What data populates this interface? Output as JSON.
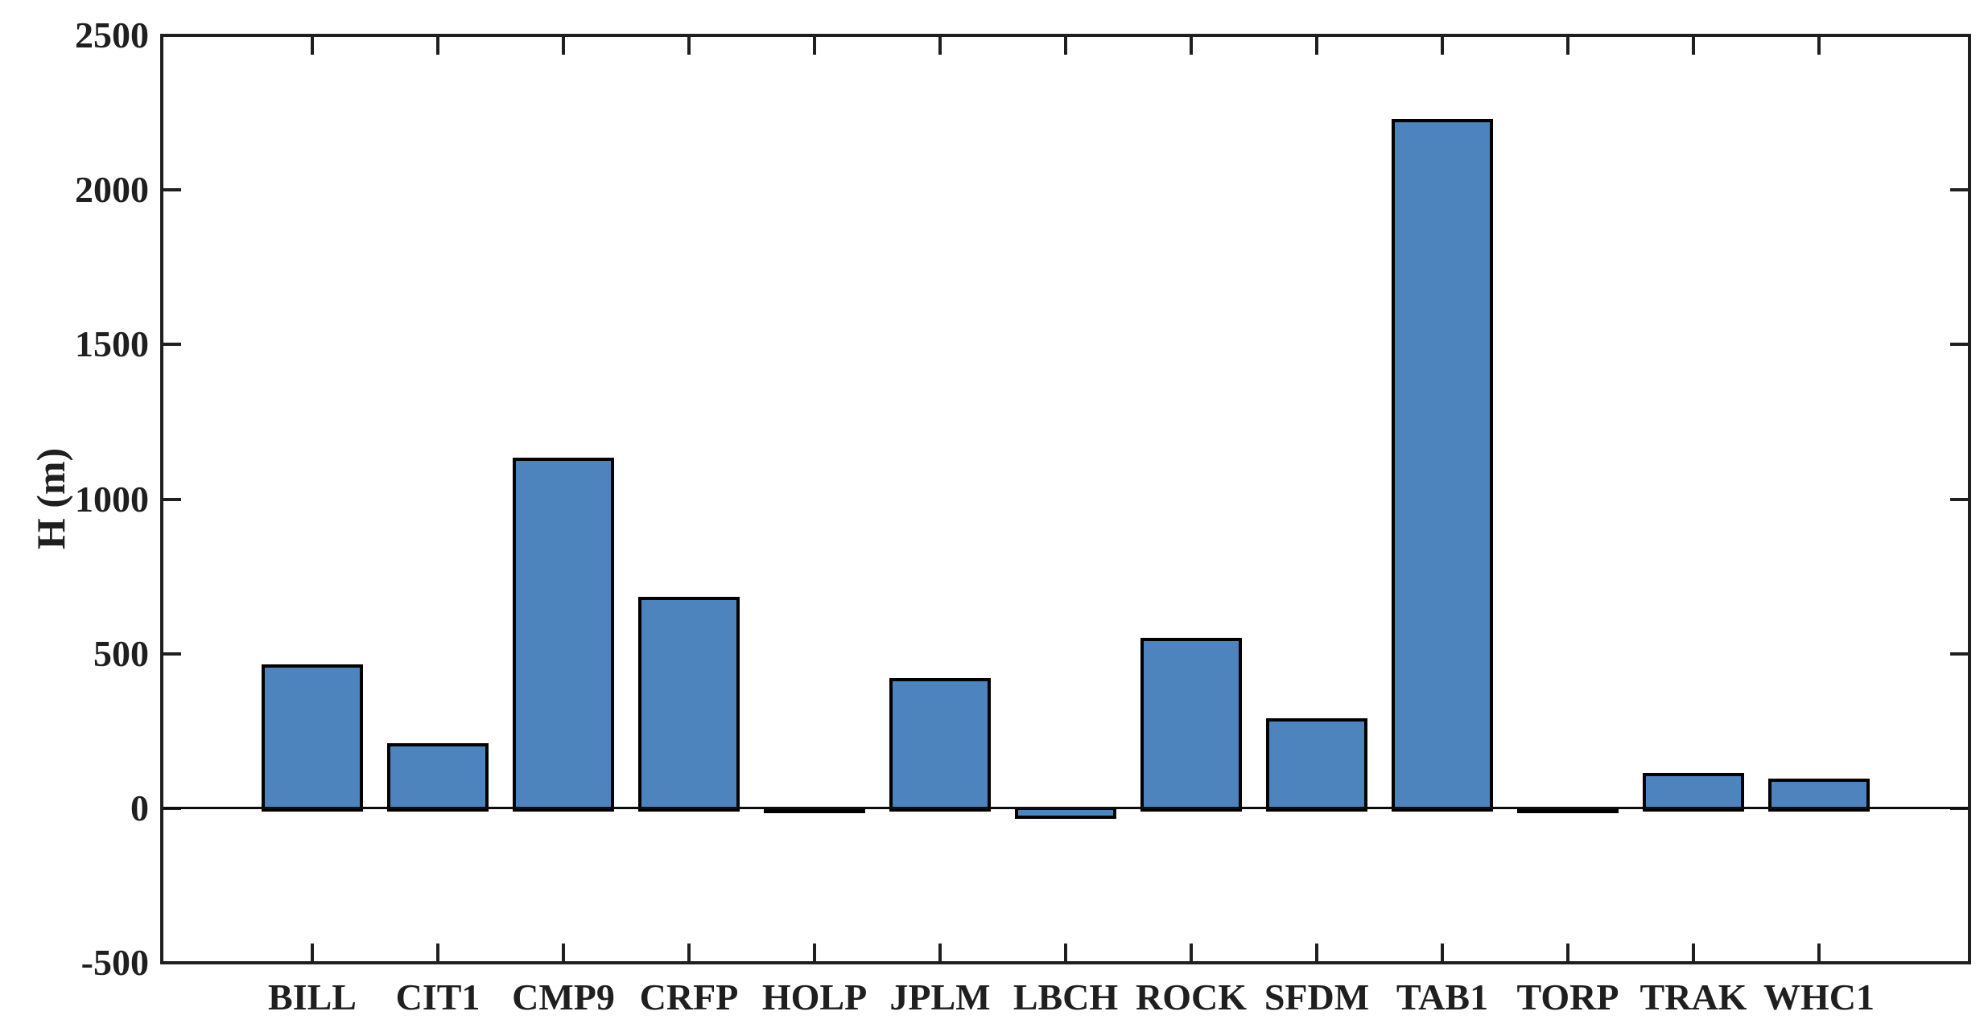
{
  "figure": {
    "background": "#ffffff",
    "title": ""
  },
  "chart_data": {
    "type": "bar",
    "title": "",
    "xlabel": "",
    "ylabel": "H (m)",
    "categories": [
      "BILL",
      "CIT1",
      "CMP9",
      "CRFP",
      "HOLP",
      "JPLM",
      "LBCH",
      "ROCK",
      "SFDM",
      "TAB1",
      "TORP",
      "TRAK",
      "WHC1"
    ],
    "values": [
      465,
      210,
      1135,
      685,
      -5,
      420,
      -25,
      550,
      290,
      2230,
      -5,
      115,
      95
    ],
    "ylim": [
      -500,
      2500
    ],
    "yticks": [
      -500,
      0,
      500,
      1000,
      1500,
      2000,
      2500
    ],
    "grid": false,
    "legend": null,
    "zero_baseline": true,
    "tick_style": "inward, mirrored on all four box sides",
    "bar_color": "#4E84BD",
    "bar_edge_color": "#000000",
    "axis_color": "#1f1f1f"
  }
}
